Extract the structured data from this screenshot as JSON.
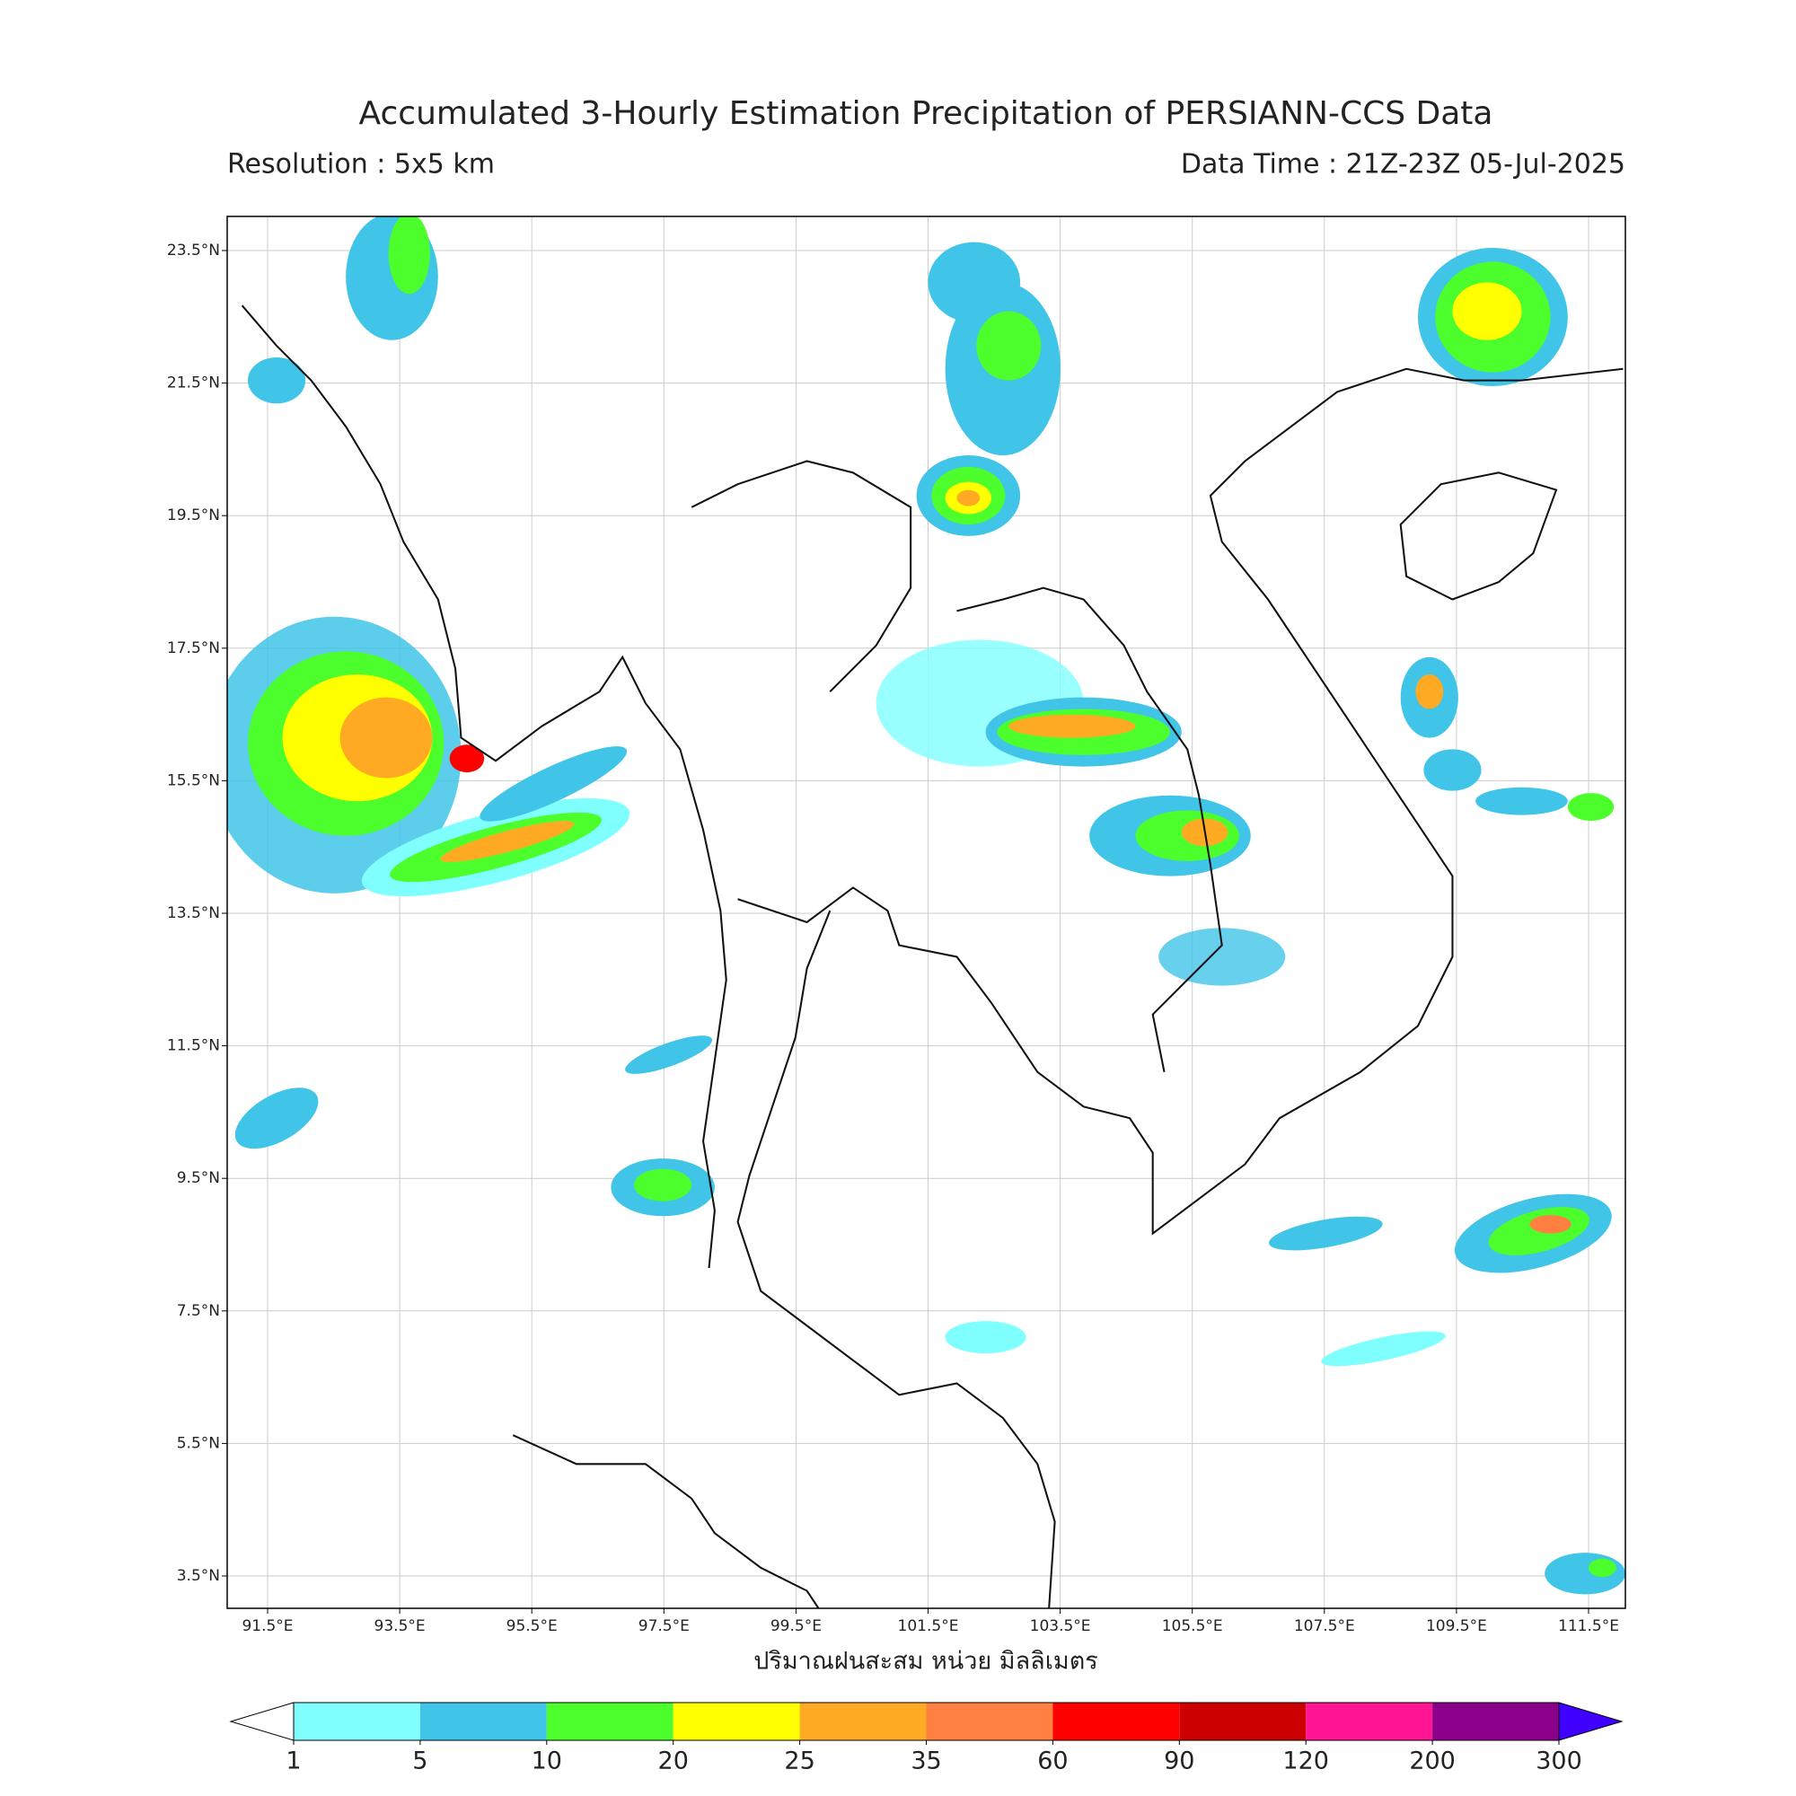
{
  "header": {
    "title": "Accumulated 3-Hourly Estimation Precipitation of PERSIANN-CCS Data",
    "resolution": "Resolution : 5x5 km",
    "data_time": "Data Time : 21Z-23Z 05-Jul-2025"
  },
  "map": {
    "lon_ticks": [
      "91.5°E",
      "93.5°E",
      "95.5°E",
      "97.5°E",
      "99.5°E",
      "101.5°E",
      "103.5°E",
      "105.5°E",
      "107.5°E",
      "109.5°E",
      "111.5°E"
    ],
    "lat_ticks": [
      "23.5°N",
      "21.5°N",
      "19.5°N",
      "17.5°N",
      "15.5°N",
      "13.5°N",
      "11.5°N",
      "9.5°N",
      "7.5°N",
      "5.5°N",
      "3.5°N"
    ],
    "x_label": "ปริมาณฝนสะสม หน่วย มิลลิเมตร"
  },
  "colorbar": {
    "levels": [
      1,
      5,
      10,
      20,
      25,
      35,
      60,
      90,
      120,
      200,
      300
    ],
    "under_color": "#ffffff",
    "colors": [
      "#80ffff",
      "#40c4e8",
      "#4cff2c",
      "#ffff00",
      "#ffaa22",
      "#ff8040",
      "#ff0000",
      "#cc0000",
      "#ff1493",
      "#8b008b"
    ],
    "over_color": "#4000ff"
  }
}
